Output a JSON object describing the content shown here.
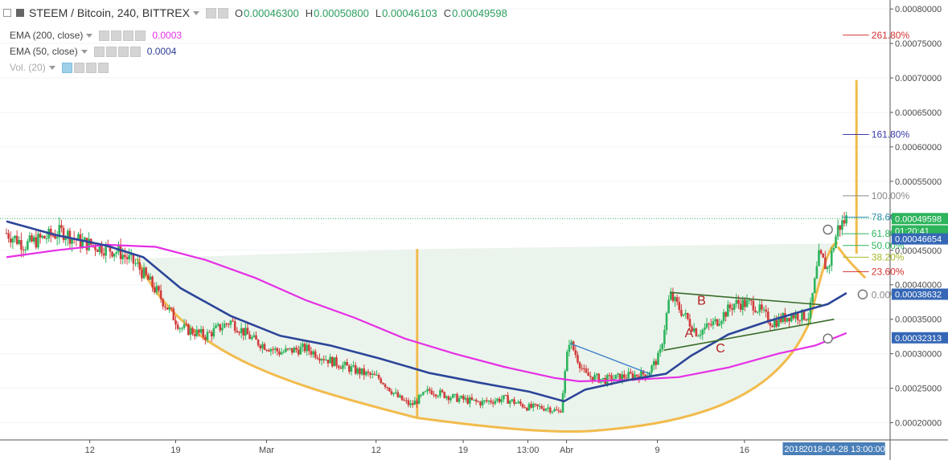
{
  "header": {
    "title": "STEEM / Bitcoin, 240, BITTREX",
    "ohlc": [
      {
        "key": "O",
        "value": "0.00046300"
      },
      {
        "key": "H",
        "value": "0.00050800"
      },
      {
        "key": "L",
        "value": "0.00046103"
      },
      {
        "key": "C",
        "value": "0.00049598"
      }
    ]
  },
  "indicators": [
    {
      "label": "EMA (200, close)",
      "value": "0.0003",
      "color": "#e62fe6"
    },
    {
      "label": "EMA (50, close)",
      "value": "0.0004",
      "color": "#2c3e94"
    },
    {
      "label": "Vol. (20)",
      "value": "",
      "color": "#aaaaaa"
    }
  ],
  "colors": {
    "up": "#2db45c",
    "down": "#d23c3c",
    "ema200": "#e62fe6",
    "ema50": "#2c4599",
    "cup": "#f2bb4d",
    "cup_fill": "#e9f3ea",
    "trend": "#3a6b2a",
    "blue_line": "#3b80c8",
    "pattern_label": "#b01e1e"
  },
  "chart_data": {
    "type": "candlestick",
    "symbol": "STEEM / Bitcoin",
    "y_axis": {
      "ticks": [
        "0.00020000",
        "0.00025000",
        "0.00030000",
        "0.00035000",
        "0.00040000",
        "0.00045000",
        "0.00050000",
        "0.00055000",
        "0.00060000",
        "0.00065000",
        "0.00070000",
        "0.00075000",
        "0.00080000"
      ],
      "range": [
        0.000175,
        0.000813
      ]
    },
    "x_axis": {
      "ticks": [
        "12",
        "19",
        "Mar",
        "12",
        "19",
        "13:00",
        "Abr",
        "9",
        "16",
        "2018-0",
        "2018-04-28 13:00:00",
        "13:00"
      ],
      "range_days": [
        0,
        71
      ]
    },
    "price_badges": [
      {
        "label": "0.00049598",
        "value": 0.00049598,
        "color": "#2db45c"
      },
      {
        "label": "01:20:41",
        "value": 0.0004782,
        "color": "#2db45c"
      },
      {
        "label": "0.00046654",
        "value": 0.00046654,
        "color": "#3567b6"
      },
      {
        "label": "0.00038632",
        "value": 0.00038632,
        "color": "#3567b6"
      },
      {
        "label": "0.00032313",
        "value": 0.00032313,
        "color": "#3567b6"
      }
    ],
    "fib_levels": [
      {
        "label": "261.80%",
        "value": 0.000762,
        "color": "#d43232"
      },
      {
        "label": "161.80%",
        "value": 0.000618,
        "color": "#3a3aa8"
      },
      {
        "label": "100.00%",
        "value": 0.000529,
        "color": "#888888"
      },
      {
        "label": "78.60%",
        "value": 0.000498,
        "color": "#2f8fb0"
      },
      {
        "label": "61.80%",
        "value": 0.000474,
        "color": "#2db45c"
      },
      {
        "label": "50.00%",
        "value": 0.000457,
        "color": "#2db45c"
      },
      {
        "label": "38.20%",
        "value": 0.00044,
        "color": "#a8b82a"
      },
      {
        "label": "23.60%",
        "value": 0.000419,
        "color": "#d43232"
      },
      {
        "label": "0.00%",
        "value": 0.000385,
        "color": "#888888"
      }
    ],
    "pattern_labels": [
      "A",
      "B",
      "C"
    ],
    "price_anchors": [
      [
        0.0,
        0.000475
      ],
      [
        1.5,
        0.000458
      ],
      [
        3.0,
        0.000468
      ],
      [
        4.5,
        0.000477
      ],
      [
        6.0,
        0.000462
      ],
      [
        7.5,
        0.000455
      ],
      [
        9.0,
        0.000448
      ],
      [
        10.5,
        0.000428
      ],
      [
        12.0,
        0.000392
      ],
      [
        14.0,
        0.000338
      ],
      [
        16.0,
        0.000326
      ],
      [
        18.0,
        0.000347
      ],
      [
        20.0,
        0.000318
      ],
      [
        22.0,
        0.000302
      ],
      [
        24.0,
        0.000308
      ],
      [
        26.0,
        0.00029
      ],
      [
        28.0,
        0.000276
      ],
      [
        30.0,
        0.000264
      ],
      [
        31.5,
        0.000236
      ],
      [
        32.5,
        0.000225
      ],
      [
        34.0,
        0.000247
      ],
      [
        36.0,
        0.000236
      ],
      [
        38.0,
        0.000229
      ],
      [
        40.0,
        0.000235
      ],
      [
        42.0,
        0.000222
      ],
      [
        43.5,
        0.000222
      ],
      [
        44.5,
        0.000214
      ],
      [
        45.2,
        0.00032
      ],
      [
        46.5,
        0.000269
      ],
      [
        48.0,
        0.000262
      ],
      [
        50.0,
        0.000268
      ],
      [
        51.5,
        0.000271
      ],
      [
        52.5,
        0.000298
      ],
      [
        53.3,
        0.000385
      ],
      [
        54.3,
        0.00036
      ],
      [
        55.5,
        0.00033
      ],
      [
        57.0,
        0.000346
      ],
      [
        58.5,
        0.000373
      ],
      [
        60.0,
        0.000372
      ],
      [
        61.5,
        0.000345
      ],
      [
        63.0,
        0.000356
      ],
      [
        64.5,
        0.000355
      ],
      [
        65.3,
        0.000442
      ],
      [
        66.0,
        0.000423
      ],
      [
        66.8,
        0.000482
      ],
      [
        67.5,
        0.000496
      ]
    ],
    "ema50": [
      [
        0.0,
        0.000492
      ],
      [
        4.0,
        0.000472
      ],
      [
        8.0,
        0.000457
      ],
      [
        11.0,
        0.00044
      ],
      [
        14.0,
        0.000395
      ],
      [
        18.0,
        0.000355
      ],
      [
        22.0,
        0.000326
      ],
      [
        26.0,
        0.000312
      ],
      [
        30.0,
        0.000293
      ],
      [
        34.0,
        0.000272
      ],
      [
        38.0,
        0.000258
      ],
      [
        42.0,
        0.000245
      ],
      [
        44.8,
        0.000231
      ],
      [
        46.5,
        0.000248
      ],
      [
        50.0,
        0.000262
      ],
      [
        53.0,
        0.000271
      ],
      [
        55.0,
        0.000297
      ],
      [
        58.0,
        0.000328
      ],
      [
        61.0,
        0.000346
      ],
      [
        64.0,
        0.000362
      ],
      [
        66.0,
        0.000372
      ],
      [
        67.5,
        0.000388
      ]
    ],
    "ema200": [
      [
        0.0,
        0.00044
      ],
      [
        4.0,
        0.00045
      ],
      [
        8.0,
        0.000458
      ],
      [
        12.0,
        0.000455
      ],
      [
        16.0,
        0.000436
      ],
      [
        20.0,
        0.00041
      ],
      [
        24.0,
        0.000378
      ],
      [
        28.0,
        0.000352
      ],
      [
        32.0,
        0.000322
      ],
      [
        36.0,
        0.0003
      ],
      [
        40.0,
        0.000281
      ],
      [
        44.0,
        0.000265
      ],
      [
        46.0,
        0.00026
      ],
      [
        50.0,
        0.000262
      ],
      [
        54.0,
        0.000266
      ],
      [
        58.0,
        0.00028
      ],
      [
        62.0,
        0.0003
      ],
      [
        65.0,
        0.000312
      ],
      [
        67.5,
        0.00033
      ]
    ]
  }
}
